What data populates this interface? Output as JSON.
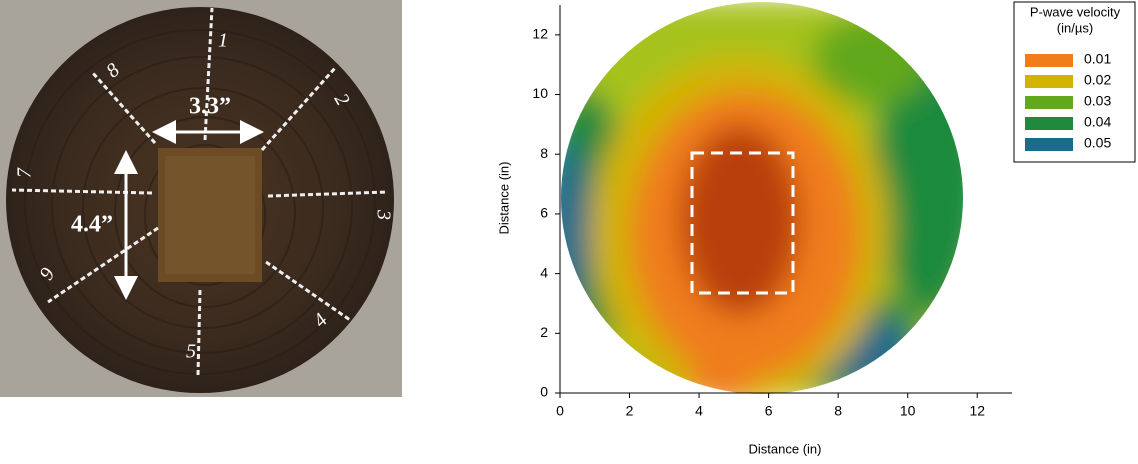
{
  "photo": {
    "dimension_labels": [
      "3.3”",
      "4.4”"
    ],
    "ring_marks": [
      "1",
      "2",
      "3",
      "4",
      "5",
      "6",
      "7",
      "8"
    ]
  },
  "chart_data": {
    "type": "contour",
    "xlabel": "Distance (in)",
    "ylabel": "Distance (in)",
    "xlim": [
      0,
      13
    ],
    "ylim": [
      0,
      13
    ],
    "xticks": [
      0,
      2,
      4,
      6,
      8,
      10,
      12
    ],
    "yticks": [
      0,
      2,
      4,
      6,
      8,
      10,
      12
    ],
    "legend": {
      "title": [
        "P-wave velocity",
        "(in/µs)"
      ],
      "position": "upper right",
      "items": [
        {
          "label": "0.01",
          "color": "#f07d1a"
        },
        {
          "label": "0.02",
          "color": "#d2b400"
        },
        {
          "label": "0.03",
          "color": "#62a81c"
        },
        {
          "label": "0.04",
          "color": "#1f8a3e"
        },
        {
          "label": "0.05",
          "color": "#1b6b8c"
        }
      ]
    }
  }
}
